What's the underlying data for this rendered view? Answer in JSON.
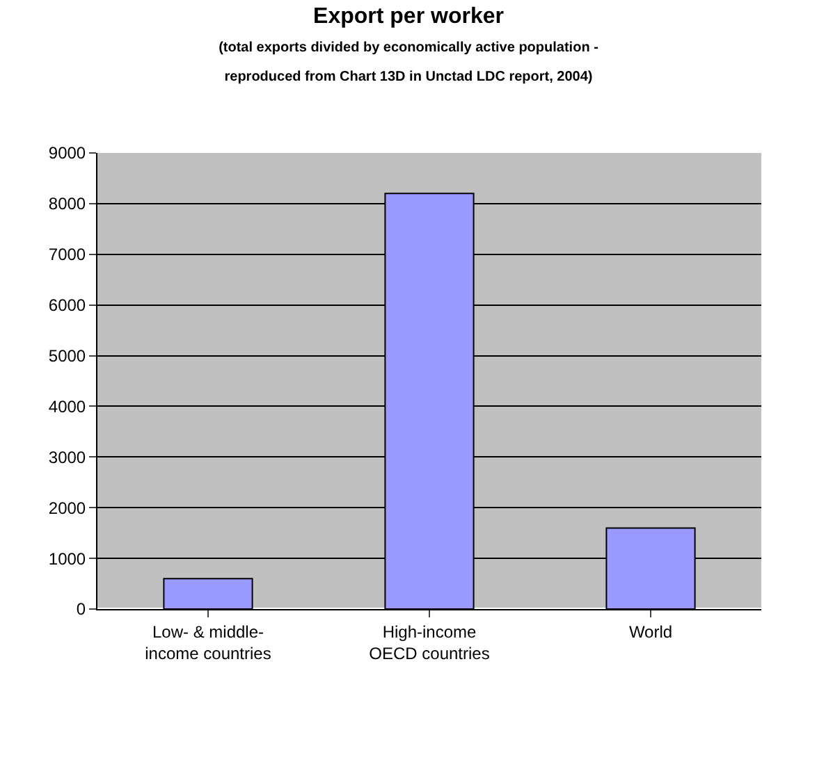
{
  "chart_data": {
    "type": "bar",
    "title": "Export per worker",
    "subtitle": "(total exports divided by economically active population -\nreproduced from Chart 13D in Unctad LDC report, 2004)",
    "categories": [
      "Low- & middle-\nincome countries",
      "High-income\nOECD countries",
      "World"
    ],
    "values": [
      600,
      8200,
      1600
    ],
    "color": "#9999ff",
    "ylim": [
      0,
      9000
    ],
    "yticks": [
      0,
      1000,
      2000,
      3000,
      4000,
      5000,
      6000,
      7000,
      8000,
      9000
    ],
    "grid": "y"
  }
}
